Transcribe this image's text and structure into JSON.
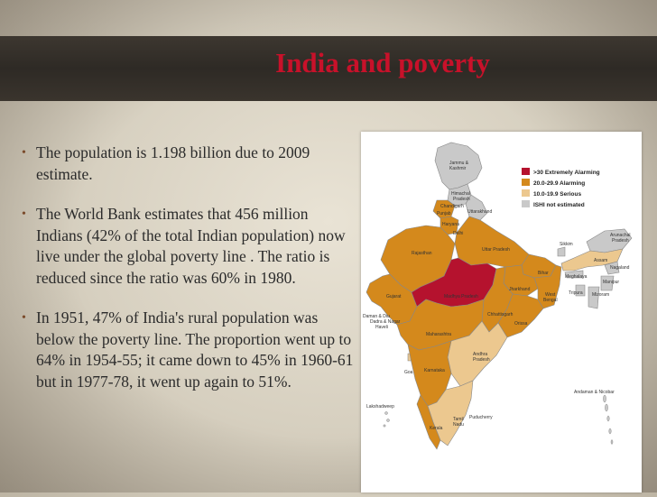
{
  "title": "India and poverty",
  "bullets": [
    "The population is 1.198 billion due to 2009 estimate.",
    "The World Bank estimates that 456 million Indians (42% of the total Indian population) now live under the global poverty line . The ratio is reduced since the ratio was 60%  in 1980.",
    "In 1951, 47% of India's rural population was below the poverty line. The proportion went up to 64% in 1954-55; it came down to 45% in 1960-61 but in 1977-78, it went up again to 51%."
  ],
  "colors": {
    "extreme": "#b5122e",
    "alarming": "#d4891c",
    "serious": "#ecc88f",
    "not_estimated": "#c9c9c9"
  },
  "legend": [
    {
      "label": ">30 Extremely Alarming",
      "color": "#b5122e"
    },
    {
      "label": "20.0-29.9 Alarming",
      "color": "#d4891c"
    },
    {
      "label": "10.0-19.9 Serious",
      "color": "#ecc88f"
    },
    {
      "label": "ISHI not estimated",
      "color": "#c9c9c9"
    }
  ],
  "map_labels": {
    "jk": "Jammu &",
    "jk2": "Kashmir",
    "hp": "Himachal",
    "hp2": "Pradesh",
    "chandigarh": "Chandigarh",
    "punjab": "Punjab",
    "uttarakhand": "Uttarakhand",
    "haryana": "Haryana",
    "delhi": "Delhi",
    "rajasthan": "Rajasthan",
    "up": "Uttar Pradesh",
    "sikkim": "Sikkim",
    "arunachal": "Arunachal",
    "arunachal2": "Pradesh",
    "assam": "Assam",
    "nagaland": "Nagaland",
    "meghalaya": "Meghalaya",
    "manipur": "Manipur",
    "bihar": "Bihar",
    "tripura": "Tripura",
    "mizoram": "Mizoram",
    "gujarat": "Gujarat",
    "mp": "Madhya Pradesh",
    "jharkhand": "Jharkhand",
    "wb": "West",
    "wb2": "Bengal",
    "chhattisgarh": "Chhattisgarh",
    "orissa": "Orissa",
    "daman": "Daman & Diu",
    "dadra": "Dadra & Nagar",
    "dadra2": "Haveli",
    "maharashtra": "Maharashtra",
    "andhra": "Andhra",
    "andhra2": "Pradesh",
    "goa": "Goa",
    "karnataka": "Karnataka",
    "andaman": "Andaman & Nicobar",
    "lakshadweep": "Lakshadweep",
    "puducherry": "Puducherry",
    "kerala": "Kerala",
    "tn": "Tamil",
    "tn2": "Nadu"
  }
}
